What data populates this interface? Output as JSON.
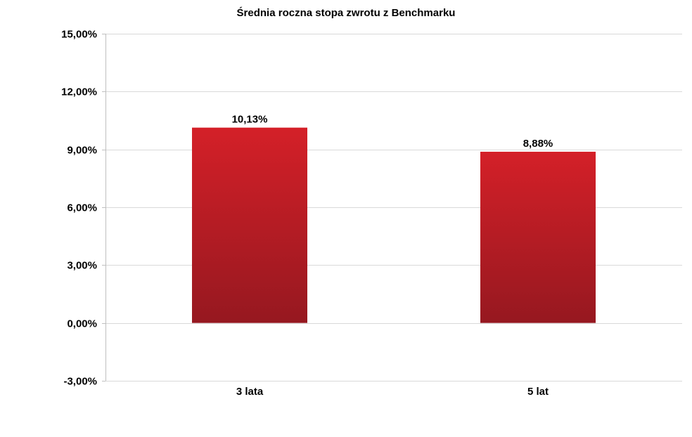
{
  "chart_data": {
    "type": "bar",
    "title": "Średnia roczna stopa zwrotu z Benchmarku",
    "categories": [
      "3 lata",
      "5 lat"
    ],
    "values": [
      10.13,
      8.88
    ],
    "data_labels": [
      "10,13%",
      "8,88%"
    ],
    "ylim": [
      -3,
      15
    ],
    "yticks": [
      15,
      12,
      9,
      6,
      3,
      0,
      -3
    ],
    "ytick_labels": [
      "15,00%",
      "12,00%",
      "9,00%",
      "6,00%",
      "3,00%",
      "0,00%",
      "-3,00%"
    ],
    "grid": true,
    "legend": "none",
    "colors": {
      "bar_top": "#d42028",
      "bar_bottom": "#961820",
      "grid": "#d9d9d9",
      "axis": "#bfbfbf"
    }
  }
}
